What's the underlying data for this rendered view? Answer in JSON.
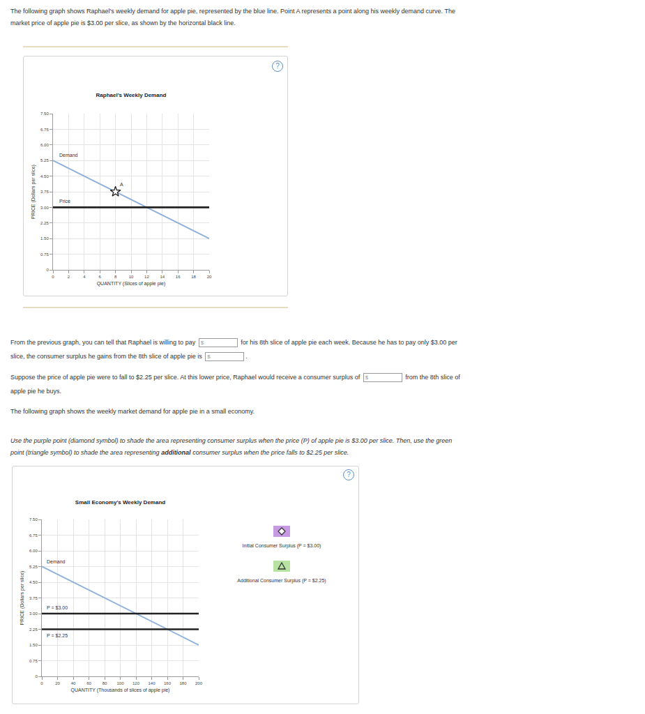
{
  "text": {
    "intro": "The following graph shows Raphael's weekly demand for apple pie, represented by the blue line. Point A represents a point along his weekly demand curve. The market price of apple pie is $3.00 per slice, as shown by the horizontal black line.",
    "q1_part1": "From the previous graph, you can tell that Raphael is willing to pay",
    "q1_part2": "for his 8th slice of apple pie each week. Because he has to pay only $3.00 per slice, the consumer surplus he gains from the 8th slice of apple pie is",
    "q1_end": ".",
    "q2_part1": "Suppose the price of apple pie were to fall to $2.25 per slice. At this lower price, Raphael would receive a consumer surplus of",
    "q2_part2": "from the 8th slice of apple pie he buys.",
    "market_intro": "The following graph shows the weekly market demand for apple pie in a small economy.",
    "instruction_1": "Use the purple point (diamond symbol) to shade the area representing consumer surplus when the price (P) of apple pie is $3.00 per slice. Then, use the green point (triangle symbol) to shade the area representing",
    "instruction_bold": "additional",
    "instruction_2": "consumer surplus when the price falls to $2.25 per slice.",
    "input_prefix": "$",
    "help_icon": "?"
  },
  "chart_data": [
    {
      "type": "line",
      "title": "Raphael's Weekly Demand",
      "x_label": "QUANTITY (Slices of apple pie)",
      "y_label": "PRICE (Dollars per slice)",
      "xlim": [
        0,
        20
      ],
      "xticks": [
        0,
        2,
        4,
        6,
        8,
        10,
        12,
        14,
        16,
        18,
        20
      ],
      "ylim": [
        0,
        7.5
      ],
      "yticks": [
        0,
        0.75,
        {
          "value": 1.5,
          "label": "1.50"
        },
        2.25,
        {
          "value": 3,
          "label": "3.00"
        },
        3.75,
        {
          "value": 4.5,
          "label": "4.50"
        },
        5.25,
        {
          "value": 6,
          "label": "6.00"
        },
        6.75,
        {
          "value": 7.5,
          "label": "7.50"
        }
      ],
      "grid": true,
      "series": [
        {
          "name": "Demand",
          "color": "#8fb2d8",
          "x": [
            0,
            20
          ],
          "values": [
            5.25,
            1.5
          ]
        },
        {
          "name": "Price",
          "color": "#222222",
          "x": [
            0,
            20
          ],
          "values": [
            3,
            3
          ]
        },
        {
          "name": "A",
          "type": "scatter",
          "marker": "star",
          "color": "#222222",
          "x": [
            8
          ],
          "values": [
            3.75
          ]
        }
      ],
      "annotations": [
        {
          "text": "Demand",
          "x": 0.6,
          "y": 5.5
        },
        {
          "text": "Price",
          "x": 0.6,
          "y": 3.3
        },
        {
          "text": "A",
          "x": 8.4,
          "y": 4.1
        }
      ]
    },
    {
      "type": "line",
      "title": "Small Economy's Weekly Demand",
      "x_label": "QUANTITY (Thousands of slices of apple pie)",
      "y_label": "PRICE (Dollars per slice)",
      "xlim": [
        0,
        200
      ],
      "xticks": [
        0,
        20,
        40,
        60,
        80,
        100,
        120,
        140,
        160,
        180,
        200
      ],
      "ylim": [
        0,
        7.5
      ],
      "yticks": [
        0,
        0.75,
        {
          "value": 1.5,
          "label": "1.50"
        },
        2.25,
        {
          "value": 3,
          "label": "3.00"
        },
        3.75,
        {
          "value": 4.5,
          "label": "4.50"
        },
        5.25,
        {
          "value": 6,
          "label": "6.00"
        },
        6.75,
        {
          "value": 7.5,
          "label": "7.50"
        }
      ],
      "grid": true,
      "series": [
        {
          "name": "Demand",
          "color": "#8fb2d8",
          "x": [
            0,
            200
          ],
          "values": [
            5.25,
            1.5
          ]
        },
        {
          "name": "P = $3.00",
          "color": "#222222",
          "x": [
            0,
            200
          ],
          "values": [
            3,
            3
          ]
        },
        {
          "name": "P = $2.25",
          "color": "#222222",
          "x": [
            0,
            200
          ],
          "values": [
            2.25,
            2.25
          ]
        }
      ],
      "annotations": [
        {
          "text": "Demand",
          "x": 4,
          "y": 5.5
        },
        {
          "text": "P = $3.00",
          "x": 4,
          "y": 3.3
        },
        {
          "text": "P = $2.25",
          "x": 4,
          "y": 1.95
        }
      ]
    }
  ],
  "palette": [
    {
      "label": "Initial Consumer Surplus (P = $3.00)",
      "marker": "diamond",
      "color": "#c79be3"
    },
    {
      "label": "Additional Consumer Surplus (P = $2.25)",
      "marker": "triangle",
      "color": "#b8e2a2"
    }
  ]
}
